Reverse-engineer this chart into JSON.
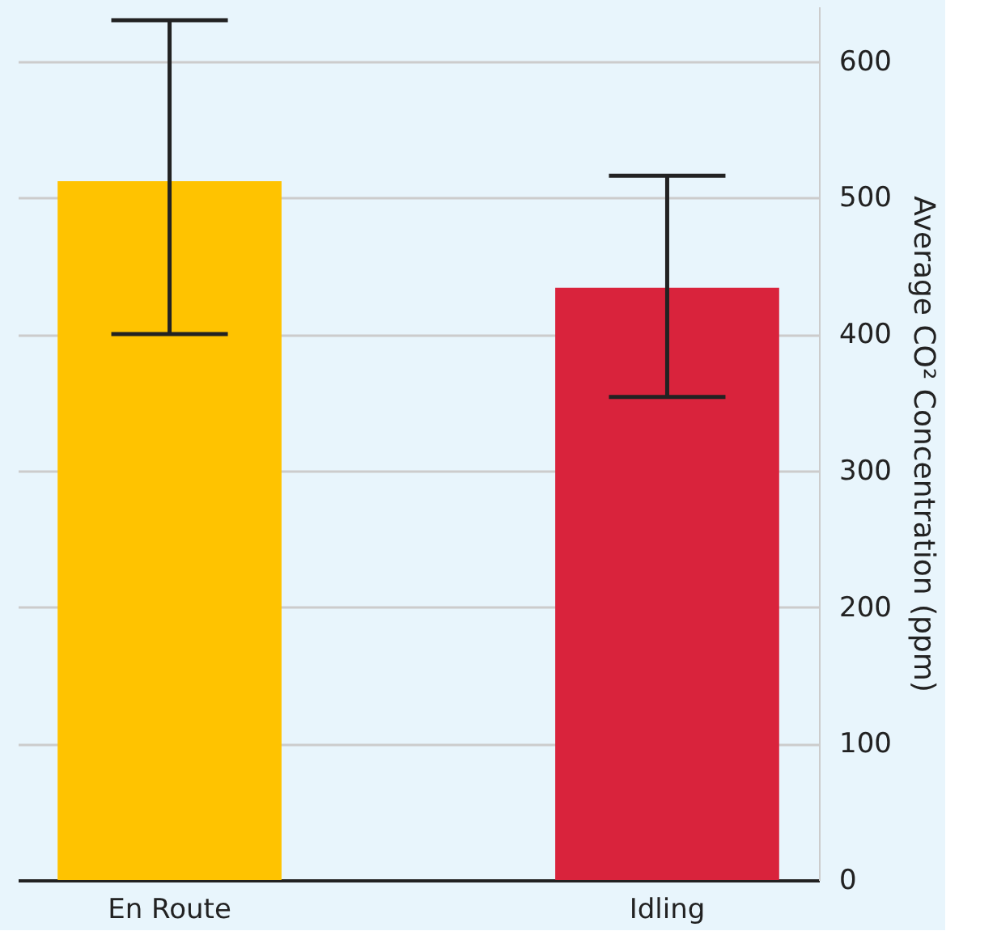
{
  "chart_data": {
    "type": "bar",
    "categories": [
      "En Route",
      "Idling"
    ],
    "values": [
      512,
      434
    ],
    "colors": [
      "#ffc300",
      "#d9233c"
    ],
    "errors": [
      [
        400,
        630
      ],
      [
        354,
        516
      ]
    ],
    "ylabel": "Average CO² Concentration (ppm)",
    "ylim": [
      0,
      640
    ],
    "yticks": [
      0,
      100,
      200,
      300,
      400,
      500,
      600
    ],
    "grid": "y"
  }
}
